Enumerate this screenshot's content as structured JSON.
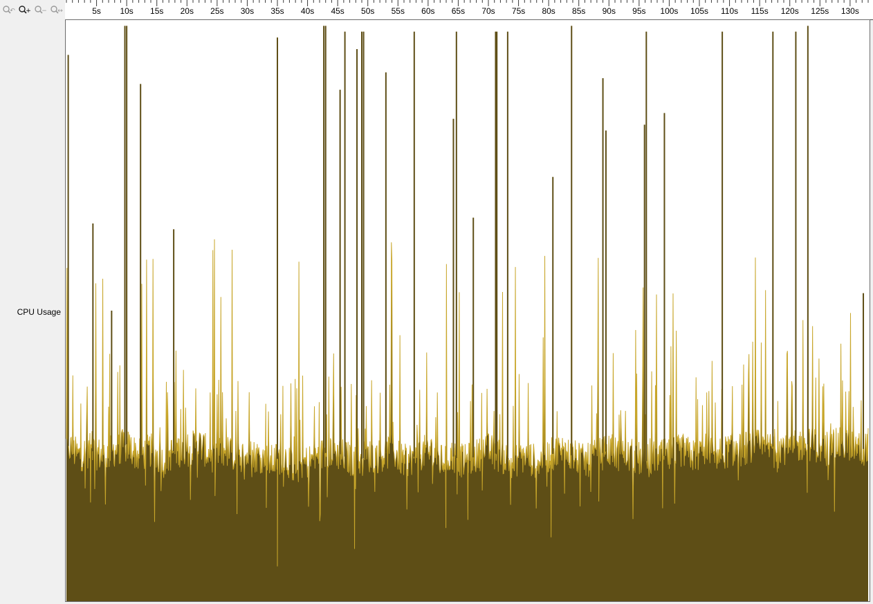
{
  "toolbar": {
    "buttons": [
      {
        "name": "zoom-reset-button",
        "icon": "magnifier-reset-icon"
      },
      {
        "name": "zoom-in-button",
        "icon": "magnifier-plus-icon"
      },
      {
        "name": "zoom-out-button",
        "icon": "magnifier-minus-icon"
      },
      {
        "name": "zoom-fit-button",
        "icon": "magnifier-fit-icon"
      }
    ]
  },
  "track": {
    "label": "CPU Usage"
  },
  "colors": {
    "fill": "#5e4e16",
    "edge": "#c8a62a",
    "plot_bg": "#ffffff",
    "ruler_bg": "#ffffff",
    "panel_bg": "#f0f0f0"
  },
  "chart_data": {
    "type": "area",
    "title": "",
    "xlabel": "",
    "ylabel": "CPU Usage",
    "x_unit": "s",
    "xlim": [
      0,
      133
    ],
    "ylim": [
      0,
      100
    ],
    "x_ticks": [
      "5s",
      "10s",
      "15s",
      "20s",
      "25s",
      "30s",
      "35s",
      "40s",
      "45s",
      "50s",
      "55s",
      "60s",
      "65s",
      "70s",
      "75s",
      "80s",
      "85s",
      "90s",
      "95s",
      "100s",
      "105s",
      "110s",
      "115s",
      "120s",
      "125s",
      "130s"
    ],
    "x_tick_values": [
      5,
      10,
      15,
      20,
      25,
      30,
      35,
      40,
      45,
      50,
      55,
      60,
      65,
      70,
      75,
      80,
      85,
      90,
      95,
      100,
      105,
      110,
      115,
      120,
      125,
      130
    ],
    "baseline": [
      [
        0,
        27
      ],
      [
        2,
        25
      ],
      [
        4,
        26
      ],
      [
        6,
        25
      ],
      [
        8,
        26
      ],
      [
        10,
        27
      ],
      [
        12,
        25
      ],
      [
        14,
        26
      ],
      [
        16,
        24
      ],
      [
        18,
        26
      ],
      [
        20,
        26
      ],
      [
        22,
        27
      ],
      [
        24,
        25
      ],
      [
        26,
        26
      ],
      [
        28,
        25
      ],
      [
        30,
        25
      ],
      [
        32,
        25
      ],
      [
        34,
        24
      ],
      [
        36,
        25
      ],
      [
        38,
        23
      ],
      [
        40,
        24
      ],
      [
        42,
        25
      ],
      [
        44,
        26
      ],
      [
        46,
        25
      ],
      [
        48,
        24
      ],
      [
        50,
        25
      ],
      [
        52,
        25
      ],
      [
        54,
        26
      ],
      [
        56,
        24
      ],
      [
        58,
        25
      ],
      [
        60,
        26
      ],
      [
        62,
        24
      ],
      [
        64,
        25
      ],
      [
        66,
        24
      ],
      [
        68,
        25
      ],
      [
        70,
        26
      ],
      [
        72,
        25
      ],
      [
        74,
        24
      ],
      [
        76,
        25
      ],
      [
        78,
        24
      ],
      [
        80,
        25
      ],
      [
        82,
        26
      ],
      [
        84,
        25
      ],
      [
        86,
        24
      ],
      [
        88,
        25
      ],
      [
        90,
        26
      ],
      [
        92,
        25
      ],
      [
        94,
        25
      ],
      [
        96,
        24
      ],
      [
        98,
        25
      ],
      [
        100,
        25
      ],
      [
        102,
        26
      ],
      [
        104,
        25
      ],
      [
        106,
        26
      ],
      [
        108,
        25
      ],
      [
        110,
        26
      ],
      [
        112,
        26
      ],
      [
        114,
        27
      ],
      [
        116,
        26
      ],
      [
        118,
        27
      ],
      [
        120,
        26
      ],
      [
        122,
        27
      ],
      [
        124,
        27
      ],
      [
        126,
        26
      ],
      [
        128,
        27
      ],
      [
        130,
        27
      ],
      [
        132,
        26
      ],
      [
        133,
        27
      ]
    ],
    "spikes": [
      [
        0.3,
        94
      ],
      [
        4.4,
        65
      ],
      [
        7.5,
        50
      ],
      [
        9.7,
        99
      ],
      [
        10.0,
        99
      ],
      [
        12.3,
        89
      ],
      [
        17.8,
        64
      ],
      [
        35.0,
        97
      ],
      [
        42.7,
        99
      ],
      [
        43.0,
        99
      ],
      [
        45.4,
        88
      ],
      [
        46.2,
        98
      ],
      [
        48.2,
        95
      ],
      [
        49.0,
        98
      ],
      [
        49.3,
        98
      ],
      [
        53.0,
        91
      ],
      [
        57.7,
        98
      ],
      [
        64.2,
        83
      ],
      [
        64.7,
        98
      ],
      [
        67.5,
        66
      ],
      [
        71.2,
        98
      ],
      [
        71.4,
        98
      ],
      [
        73.2,
        98
      ],
      [
        80.7,
        73
      ],
      [
        83.8,
        99
      ],
      [
        89.0,
        90
      ],
      [
        89.5,
        81
      ],
      [
        95.9,
        82
      ],
      [
        96.2,
        98
      ],
      [
        99.2,
        84
      ],
      [
        108.8,
        98
      ],
      [
        117.2,
        98
      ],
      [
        121.0,
        98
      ],
      [
        123.0,
        99
      ],
      [
        132.2,
        53
      ]
    ],
    "dips": [
      [
        4.0,
        17
      ],
      [
        28.3,
        15
      ],
      [
        35.0,
        6
      ],
      [
        47.8,
        9
      ],
      [
        66.6,
        14
      ],
      [
        80.4,
        11
      ],
      [
        98.9,
        16
      ]
    ]
  }
}
